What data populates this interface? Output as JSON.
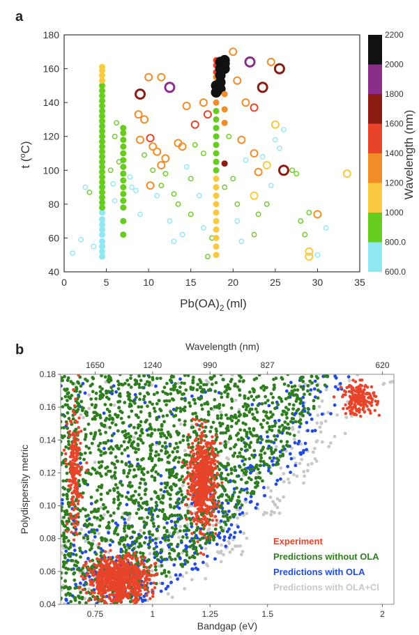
{
  "chart_data": [
    {
      "panel": "a",
      "type": "scatter",
      "title": "",
      "xlabel": "Pb(OA)",
      "xlabel_subscript": "2",
      "xlabel_unit": "(ml)",
      "ylabel_prefix": "t (",
      "ylabel_sup": "o",
      "ylabel_suffix": "C)",
      "xlim": [
        0,
        35
      ],
      "ylim": [
        40,
        180
      ],
      "xticks": [
        "0",
        "5",
        "10",
        "15",
        "20",
        "25",
        "30",
        "35"
      ],
      "yticks": [
        "40",
        "60",
        "80",
        "100",
        "120",
        "140",
        "160",
        "180"
      ],
      "colorbar": {
        "label": "Wavelength (nm)",
        "ticks": [
          "600.0",
          "800.0",
          "1000",
          "1200",
          "1400",
          "1600",
          "1800",
          "2000",
          "2200"
        ],
        "bands": [
          {
            "from": 600,
            "to": 800,
            "color": "#8fe8f4"
          },
          {
            "from": 800,
            "to": 1000,
            "color": "#66cc1e"
          },
          {
            "from": 1000,
            "to": 1200,
            "color": "#f9c940"
          },
          {
            "from": 1200,
            "to": 1400,
            "color": "#f28c28"
          },
          {
            "from": 1400,
            "to": 1600,
            "color": "#e8442a"
          },
          {
            "from": 1600,
            "to": 1800,
            "color": "#8b1a10"
          },
          {
            "from": 1800,
            "to": 2000,
            "color": "#8a2e8a"
          },
          {
            "from": 2000,
            "to": 2200,
            "color": "#111111"
          }
        ]
      },
      "filled_series": [
        {
          "x": 4.5,
          "t": [
            49,
            52,
            55,
            58,
            62,
            65,
            68,
            71,
            75
          ],
          "wl": 700
        },
        {
          "x": 4.5,
          "t": [
            78,
            81,
            84,
            87,
            90,
            93,
            96,
            99,
            102,
            105,
            108,
            111,
            114,
            117,
            120,
            123,
            126,
            129,
            132,
            135,
            138,
            141,
            144,
            147,
            150
          ],
          "wl": 900
        },
        {
          "x": 4.5,
          "t": [
            153,
            156,
            159,
            161
          ],
          "wl": 1100
        },
        {
          "x": 7,
          "t": [
            62,
            70,
            78,
            82,
            86,
            90,
            94,
            98,
            102,
            106,
            110,
            114,
            118,
            122,
            125
          ],
          "wl": 900
        },
        {
          "x": 18,
          "t": [
            50,
            55,
            60,
            65,
            70,
            75,
            80,
            85,
            90,
            95
          ],
          "wl": 1100
        },
        {
          "x": 18,
          "t": [
            100,
            105,
            110,
            115,
            120,
            125,
            130,
            135
          ],
          "wl": 900
        },
        {
          "x": 18,
          "t": [
            140,
            145,
            150,
            155
          ],
          "wl": 1300
        },
        {
          "x": 18,
          "t": [
            158,
            162,
            165
          ],
          "wl": 1500
        },
        {
          "x": 18.5,
          "t": [
            148,
            152,
            156,
            160,
            164
          ],
          "wl": 2100
        },
        {
          "x": 19,
          "t": [
            104
          ],
          "wl": 1700
        },
        {
          "x": 19,
          "t": [
            128,
            136,
            145
          ],
          "wl": 1300
        },
        {
          "x": 19,
          "t": [
            160,
            163,
            165
          ],
          "wl": 2100
        },
        {
          "x": 18,
          "t": [
            146,
            150
          ],
          "wl": 2100
        }
      ],
      "open_circles": [
        {
          "x": 9,
          "t": 145,
          "wl": 1700,
          "big": true
        },
        {
          "x": 12.5,
          "t": 149,
          "wl": 1900,
          "big": true
        },
        {
          "x": 22,
          "t": 164,
          "wl": 1900,
          "big": true
        },
        {
          "x": 25.5,
          "t": 160,
          "wl": 1700,
          "big": true
        },
        {
          "x": 23.5,
          "t": 149,
          "wl": 1700,
          "big": true
        },
        {
          "x": 26,
          "t": 100,
          "wl": 1700,
          "big": true
        },
        {
          "x": 20,
          "t": 170,
          "wl": 1300
        },
        {
          "x": 24.5,
          "t": 164,
          "wl": 1300
        },
        {
          "x": 10,
          "t": 155,
          "wl": 1300
        },
        {
          "x": 11.5,
          "t": 155,
          "wl": 1300
        },
        {
          "x": 8.8,
          "t": 133,
          "wl": 1300
        },
        {
          "x": 9.5,
          "t": 130,
          "wl": 1300
        },
        {
          "x": 10.2,
          "t": 119,
          "wl": 1500
        },
        {
          "x": 9,
          "t": 118,
          "wl": 1300
        },
        {
          "x": 10.5,
          "t": 114,
          "wl": 1300
        },
        {
          "x": 11,
          "t": 111,
          "wl": 1300
        },
        {
          "x": 12,
          "t": 107,
          "wl": 1300
        },
        {
          "x": 11.5,
          "t": 103,
          "wl": 1300
        },
        {
          "x": 10.2,
          "t": 91,
          "wl": 1300
        },
        {
          "x": 14.5,
          "t": 138,
          "wl": 1300
        },
        {
          "x": 13.5,
          "t": 116,
          "wl": 1300
        },
        {
          "x": 14,
          "t": 114,
          "wl": 1300
        },
        {
          "x": 15.5,
          "t": 127,
          "wl": 1500
        },
        {
          "x": 17,
          "t": 133,
          "wl": 1500
        },
        {
          "x": 16.5,
          "t": 140,
          "wl": 1300
        },
        {
          "x": 20.5,
          "t": 153,
          "wl": 1300
        },
        {
          "x": 21.5,
          "t": 140,
          "wl": 1300
        },
        {
          "x": 22.5,
          "t": 137,
          "wl": 1500
        },
        {
          "x": 25,
          "t": 127,
          "wl": 1100
        },
        {
          "x": 21,
          "t": 118,
          "wl": 1300
        },
        {
          "x": 22.5,
          "t": 110,
          "wl": 1300
        },
        {
          "x": 23,
          "t": 99,
          "wl": 1300
        },
        {
          "x": 24,
          "t": 103,
          "wl": 1100
        },
        {
          "x": 22.5,
          "t": 85,
          "wl": 1100
        },
        {
          "x": 30,
          "t": 74,
          "wl": 1300
        },
        {
          "x": 33.5,
          "t": 98,
          "wl": 1100
        },
        {
          "x": 29,
          "t": 52,
          "wl": 1100
        },
        {
          "x": 29,
          "t": 49,
          "wl": 1100
        }
      ],
      "scattered_small": [
        {
          "x": 1,
          "t": 51,
          "wl": 700
        },
        {
          "x": 2,
          "t": 59,
          "wl": 700
        },
        {
          "x": 3,
          "t": 87,
          "wl": 900
        },
        {
          "x": 3.5,
          "t": 55,
          "wl": 700
        },
        {
          "x": 5.5,
          "t": 100,
          "wl": 900
        },
        {
          "x": 5.8,
          "t": 92,
          "wl": 700
        },
        {
          "x": 6,
          "t": 120,
          "wl": 900
        },
        {
          "x": 6.2,
          "t": 128,
          "wl": 900
        },
        {
          "x": 6.5,
          "t": 105,
          "wl": 900
        },
        {
          "x": 6,
          "t": 82,
          "wl": 700
        },
        {
          "x": 8,
          "t": 90,
          "wl": 700
        },
        {
          "x": 8.5,
          "t": 88,
          "wl": 700
        },
        {
          "x": 9,
          "t": 74,
          "wl": 700
        },
        {
          "x": 9.5,
          "t": 109,
          "wl": 900
        },
        {
          "x": 10.5,
          "t": 100,
          "wl": 900
        },
        {
          "x": 11,
          "t": 85,
          "wl": 700
        },
        {
          "x": 11.5,
          "t": 91,
          "wl": 900
        },
        {
          "x": 12,
          "t": 98,
          "wl": 900
        },
        {
          "x": 12.5,
          "t": 70,
          "wl": 700
        },
        {
          "x": 13,
          "t": 86,
          "wl": 900
        },
        {
          "x": 13.5,
          "t": 80,
          "wl": 900
        },
        {
          "x": 13,
          "t": 58,
          "wl": 700
        },
        {
          "x": 14,
          "t": 62,
          "wl": 700
        },
        {
          "x": 15,
          "t": 95,
          "wl": 900
        },
        {
          "x": 15,
          "t": 74,
          "wl": 900
        },
        {
          "x": 15.5,
          "t": 115,
          "wl": 900
        },
        {
          "x": 16,
          "t": 85,
          "wl": 700
        },
        {
          "x": 16.5,
          "t": 110,
          "wl": 900
        },
        {
          "x": 16.5,
          "t": 66,
          "wl": 700
        },
        {
          "x": 17,
          "t": 49,
          "wl": 900
        },
        {
          "x": 17.5,
          "t": 60,
          "wl": 900
        },
        {
          "x": 19.5,
          "t": 120,
          "wl": 900
        },
        {
          "x": 20,
          "t": 95,
          "wl": 900
        },
        {
          "x": 20.5,
          "t": 80,
          "wl": 900
        },
        {
          "x": 20.5,
          "t": 70,
          "wl": 700
        },
        {
          "x": 21,
          "t": 58,
          "wl": 700
        },
        {
          "x": 22.5,
          "t": 62,
          "wl": 900
        },
        {
          "x": 23,
          "t": 74,
          "wl": 900
        },
        {
          "x": 23.5,
          "t": 108,
          "wl": 700
        },
        {
          "x": 24,
          "t": 80,
          "wl": 900
        },
        {
          "x": 24.5,
          "t": 91,
          "wl": 700
        },
        {
          "x": 25.5,
          "t": 113,
          "wl": 700
        },
        {
          "x": 27,
          "t": 100,
          "wl": 900
        },
        {
          "x": 27.5,
          "t": 98,
          "wl": 900
        },
        {
          "x": 28,
          "t": 70,
          "wl": 900
        },
        {
          "x": 28.5,
          "t": 62,
          "wl": 900
        },
        {
          "x": 29,
          "t": 75,
          "wl": 900
        },
        {
          "x": 30,
          "t": 50,
          "wl": 700
        },
        {
          "x": 31,
          "t": 66,
          "wl": 700
        },
        {
          "x": 25,
          "t": 118,
          "wl": 700
        },
        {
          "x": 26,
          "t": 124,
          "wl": 700
        },
        {
          "x": 21.5,
          "t": 106,
          "wl": 700
        },
        {
          "x": 19,
          "t": 90,
          "wl": 900
        },
        {
          "x": 14.5,
          "t": 102,
          "wl": 700
        },
        {
          "x": 7.8,
          "t": 96,
          "wl": 700
        },
        {
          "x": 2.5,
          "t": 90,
          "wl": 700
        }
      ]
    },
    {
      "panel": "b",
      "type": "scatter",
      "title": "",
      "xlabel": "Bandgap (eV)",
      "ylabel": "Polydispersity metric",
      "top_axis_label": "Wavelength (nm)",
      "xlim": [
        0.6,
        2.05
      ],
      "ylim": [
        0.04,
        0.18
      ],
      "xticks": [
        {
          "v": 0.75,
          "label": "0.75"
        },
        {
          "v": 1,
          "label": "1"
        },
        {
          "v": 1.25,
          "label": "1.25"
        },
        {
          "v": 1.5,
          "label": "1.5"
        },
        {
          "v": 2,
          "label": "2"
        }
      ],
      "top_ticks": [
        {
          "v": 0.75,
          "label": "1650"
        },
        {
          "v": 1.0,
          "label": "1240"
        },
        {
          "v": 1.25,
          "label": "990"
        },
        {
          "v": 1.5,
          "label": "827"
        },
        {
          "v": 2.0,
          "label": "620"
        }
      ],
      "yticks": [
        "0.04",
        "0.06",
        "0.08",
        "0.10",
        "0.12",
        "0.14",
        "0.16",
        "0.18"
      ],
      "legend_position": "bottom-right",
      "series": [
        {
          "name": "Predictions with OLA+Cl",
          "color": "#c8c8c8",
          "region": {
            "gap": 1.6,
            "frontier": [
              [
                1.05,
                0.04
              ],
              [
                1.4,
                0.07
              ],
              [
                1.7,
                0.12
              ],
              [
                2.0,
                0.17
              ]
            ]
          }
        },
        {
          "name": "Predictions with OLA",
          "color": "#1f4be0",
          "region": {
            "gap": 1.55,
            "frontier": [
              [
                0.95,
                0.04
              ],
              [
                1.3,
                0.07
              ],
              [
                1.6,
                0.12
              ],
              [
                1.9,
                0.18
              ]
            ]
          }
        },
        {
          "name": "Predictions without OLA",
          "color": "#2e7d1e",
          "region": {
            "gap": 1.5,
            "frontier": [
              [
                0.9,
                0.04
              ],
              [
                1.25,
                0.075
              ],
              [
                1.55,
                0.125
              ],
              [
                1.8,
                0.18
              ]
            ]
          }
        },
        {
          "name": "Experiment",
          "color": "#e8442a",
          "clusters": [
            {
              "cx": 0.85,
              "cy": 0.055,
              "sx": 0.11,
              "sy": 0.012
            },
            {
              "cx": 1.22,
              "cy": 0.115,
              "sx": 0.05,
              "sy": 0.022
            },
            {
              "cx": 0.66,
              "cy": 0.12,
              "sx": 0.025,
              "sy": 0.03
            },
            {
              "cx": 1.9,
              "cy": 0.165,
              "sx": 0.06,
              "sy": 0.008
            }
          ]
        }
      ]
    }
  ]
}
